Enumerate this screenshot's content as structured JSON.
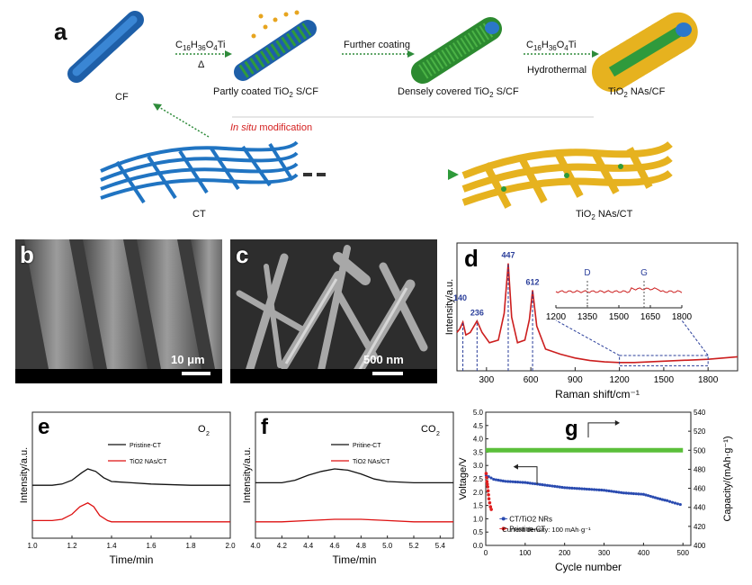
{
  "panel_a": {
    "label": "a",
    "cf": "CF",
    "step1_formula": "C16H36O4Ti",
    "step1_condition": "Δ",
    "partly": "Partly coated TiO2 S/CF",
    "further": "Further coating",
    "densely": "Densely covered TiO2 S/CF",
    "step3_formula": "C16H36O4Ti",
    "step3_condition": "Hydrothermal",
    "nas_cf": "TiO2 NAs/CF",
    "insitu": "In situ modification",
    "ct": "CT",
    "nas_ct": "TiO2 NAs/CT"
  },
  "panel_b": {
    "label": "b",
    "scale": "10 μm"
  },
  "panel_c": {
    "label": "c",
    "scale": "500 nm"
  },
  "chart_data": [
    {
      "panel": "d",
      "type": "line",
      "xlabel": "Raman shift/cm⁻¹",
      "ylabel": "Intensity/a.u.",
      "xlim": [
        100,
        2000
      ],
      "xticks": [
        300,
        600,
        900,
        1200,
        1500,
        1800
      ],
      "peaks": [
        {
          "x": 140,
          "label": "140"
        },
        {
          "x": 236,
          "label": "236"
        },
        {
          "x": 447,
          "label": "447"
        },
        {
          "x": 612,
          "label": "612"
        }
      ],
      "series": [
        {
          "color": "#cc1e1e",
          "x": [
            100,
            120,
            140,
            160,
            190,
            236,
            270,
            320,
            380,
            420,
            447,
            470,
            510,
            560,
            590,
            612,
            640,
            700,
            800,
            900,
            1000,
            1100,
            1200,
            1300,
            1400,
            1500,
            1600,
            1700,
            1800,
            1900,
            2000
          ],
          "y": [
            0.3,
            0.33,
            0.38,
            0.28,
            0.3,
            0.39,
            0.3,
            0.22,
            0.24,
            0.45,
            0.84,
            0.42,
            0.22,
            0.24,
            0.4,
            0.63,
            0.35,
            0.17,
            0.13,
            0.1,
            0.08,
            0.07,
            0.065,
            0.065,
            0.07,
            0.075,
            0.08,
            0.085,
            0.09,
            0.1,
            0.11
          ]
        }
      ],
      "inset": {
        "xlim": [
          1200,
          1800
        ],
        "xticks": [
          1200,
          1350,
          1500,
          1650,
          1800
        ],
        "markers": [
          {
            "x": 1350,
            "label": "D"
          },
          {
            "x": 1620,
            "label": "G"
          }
        ]
      }
    },
    {
      "panel": "e",
      "type": "line",
      "title": "O2",
      "xlabel": "Time/min",
      "ylabel": "Intensity/a.u.",
      "xlim": [
        1.0,
        2.0
      ],
      "xticks": [
        1.0,
        1.2,
        1.4,
        1.6,
        1.8,
        2.0
      ],
      "series": [
        {
          "name": "Pristine-CT",
          "color": "#111111",
          "x": [
            1.0,
            1.1,
            1.15,
            1.2,
            1.25,
            1.28,
            1.32,
            1.36,
            1.4,
            1.5,
            1.6,
            1.8,
            2.0
          ],
          "y": [
            0.42,
            0.42,
            0.43,
            0.46,
            0.52,
            0.55,
            0.53,
            0.48,
            0.45,
            0.44,
            0.43,
            0.42,
            0.42
          ]
        },
        {
          "name": "TiO2 NAs/CT",
          "color": "#dd1111",
          "x": [
            1.0,
            1.1,
            1.15,
            1.2,
            1.24,
            1.28,
            1.31,
            1.34,
            1.38,
            1.4,
            1.5,
            1.8,
            2.0
          ],
          "y": [
            0.14,
            0.14,
            0.15,
            0.19,
            0.25,
            0.28,
            0.25,
            0.18,
            0.14,
            0.13,
            0.13,
            0.13,
            0.13
          ]
        }
      ]
    },
    {
      "panel": "f",
      "type": "line",
      "title": "CO2",
      "xlabel": "Time/min",
      "ylabel": "Intensity/a.u.",
      "xlim": [
        4.0,
        5.5
      ],
      "xticks": [
        4.0,
        4.2,
        4.4,
        4.6,
        4.8,
        5.0,
        5.2,
        5.4
      ],
      "series": [
        {
          "name": "Pritine-CT",
          "color": "#111111",
          "x": [
            4.0,
            4.2,
            4.3,
            4.4,
            4.5,
            4.6,
            4.7,
            4.8,
            4.9,
            5.0,
            5.2,
            5.4,
            5.5
          ],
          "y": [
            0.44,
            0.44,
            0.46,
            0.5,
            0.53,
            0.55,
            0.54,
            0.51,
            0.47,
            0.45,
            0.44,
            0.44,
            0.44
          ]
        },
        {
          "name": "TiO2 NAs/CT",
          "color": "#dd1111",
          "x": [
            4.0,
            4.2,
            4.4,
            4.6,
            4.8,
            5.0,
            5.2,
            5.5
          ],
          "y": [
            0.13,
            0.13,
            0.14,
            0.15,
            0.15,
            0.14,
            0.13,
            0.13
          ]
        }
      ]
    },
    {
      "panel": "g",
      "type": "scatter",
      "xlabel": "Cycle number",
      "ylabel": "Voltage/V",
      "y2label": "Capacity/(mAh·g⁻¹)",
      "xlim": [
        0,
        520
      ],
      "ylim": [
        0,
        5.0
      ],
      "y2lim": [
        400,
        540
      ],
      "xticks": [
        0,
        100,
        200,
        300,
        400,
        500
      ],
      "yticks": [
        0.0,
        0.5,
        1.0,
        1.5,
        2.0,
        2.5,
        3.0,
        3.5,
        4.0,
        4.5,
        5.0
      ],
      "y2ticks": [
        400,
        420,
        440,
        460,
        480,
        500,
        520,
        540
      ],
      "annotation": "Current density: 100 mAh·g⁻¹",
      "series": [
        {
          "name": "Pristine-CT",
          "color": "#e02020",
          "x": [
            1,
            2,
            3,
            4,
            5,
            6,
            7,
            8,
            10,
            12,
            14
          ],
          "y": [
            2.7,
            2.55,
            2.4,
            2.3,
            2.2,
            2.05,
            1.9,
            1.75,
            1.6,
            1.45,
            1.35
          ]
        },
        {
          "name": "CT/TiO2 NRs",
          "color": "#2a4bb0",
          "x": [
            1,
            20,
            50,
            100,
            150,
            200,
            250,
            300,
            350,
            400,
            430,
            460,
            480,
            500
          ],
          "y": [
            2.65,
            2.5,
            2.4,
            2.35,
            2.25,
            2.15,
            2.1,
            2.05,
            1.95,
            1.9,
            1.8,
            1.7,
            1.6,
            1.5
          ]
        },
        {
          "name": "Capacity",
          "color": "#5bbf3a",
          "axis": "y2",
          "x": [
            0,
            100,
            200,
            300,
            400,
            500
          ],
          "y": [
            500,
            500,
            500,
            500,
            500,
            500
          ]
        }
      ]
    }
  ]
}
